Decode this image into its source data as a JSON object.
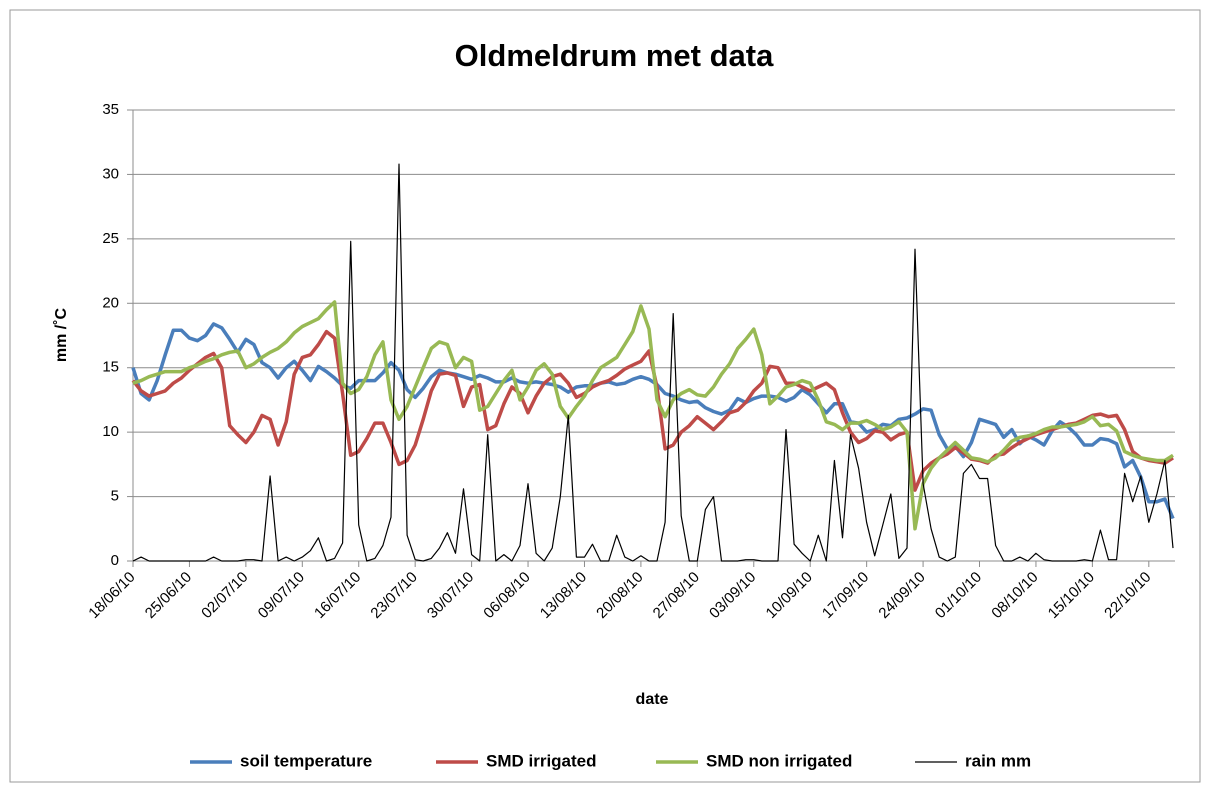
{
  "chart_data": {
    "type": "line",
    "title": "Oldmeldrum met data",
    "x_label": "date",
    "y_label": "mm /˚C",
    "categories": [
      "18/06/10",
      null,
      null,
      null,
      null,
      null,
      null,
      "25/06/10",
      null,
      null,
      null,
      null,
      null,
      null,
      "02/07/10",
      null,
      null,
      null,
      null,
      null,
      null,
      "09/07/10",
      null,
      null,
      null,
      null,
      null,
      null,
      "16/07/10",
      null,
      null,
      null,
      null,
      null,
      null,
      "23/07/10",
      null,
      null,
      null,
      null,
      null,
      null,
      "30/07/10",
      null,
      null,
      null,
      null,
      null,
      null,
      "06/08/10",
      null,
      null,
      null,
      null,
      null,
      null,
      "13/08/10",
      null,
      null,
      null,
      null,
      null,
      null,
      "20/08/10",
      null,
      null,
      null,
      null,
      null,
      null,
      "27/08/10",
      null,
      null,
      null,
      null,
      null,
      null,
      "03/09/10",
      null,
      null,
      null,
      null,
      null,
      null,
      "10/09/10",
      null,
      null,
      null,
      null,
      null,
      null,
      "17/09/10",
      null,
      null,
      null,
      null,
      null,
      null,
      "24/09/10",
      null,
      null,
      null,
      null,
      null,
      null,
      "01/10/10",
      null,
      null,
      null,
      null,
      null,
      null,
      "08/10/10",
      null,
      null,
      null,
      null,
      null,
      null,
      "15/10/10",
      null,
      null,
      null,
      null,
      null,
      null,
      "22/10/10",
      null,
      null,
      null
    ],
    "ylim": [
      0,
      35
    ],
    "yticks": [
      0,
      5,
      10,
      15,
      20,
      25,
      30,
      35
    ],
    "grid": true,
    "legend": "bottom",
    "series": [
      {
        "name": "soil temperature",
        "color": "#4a7ebb",
        "width": 3.5,
        "values": [
          15,
          13,
          12.5,
          14,
          16,
          17.9,
          17.9,
          17.3,
          17.1,
          17.5,
          18.4,
          18.1,
          17.2,
          16.2,
          17.2,
          16.8,
          15.4,
          15,
          14.2,
          15,
          15.5,
          14.8,
          14,
          15.1,
          14.7,
          14.2,
          13.6,
          13.4,
          14,
          14,
          14,
          14.6,
          15.4,
          14.8,
          13.3,
          12.7,
          13.4,
          14.3,
          14.8,
          14.6,
          14.5,
          14.3,
          14.1,
          14.4,
          14.2,
          13.9,
          13.9,
          14.2,
          13.9,
          13.8,
          13.9,
          13.8,
          13.7,
          13.5,
          13.1,
          13.5,
          13.6,
          13.6,
          13.8,
          13.9,
          13.7,
          13.8,
          14.1,
          14.3,
          14.1,
          13.7,
          13,
          12.8,
          12.5,
          12.3,
          12.4,
          11.9,
          11.6,
          11.4,
          11.7,
          12.6,
          12.3,
          12.6,
          12.8,
          12.8,
          12.7,
          12.4,
          12.7,
          13.3,
          12.9,
          12.2,
          11.5,
          12.2,
          12.2,
          10.8,
          10.7,
          10,
          10.2,
          10.6,
          10.5,
          11,
          11.1,
          11.4,
          11.8,
          11.7,
          9.8,
          8.7,
          8.9,
          8.1,
          9.2,
          11,
          10.8,
          10.6,
          9.6,
          10.2,
          9.1,
          9.7,
          9.4,
          9,
          10.1,
          10.8,
          10.4,
          9.8,
          9,
          9,
          9.5,
          9.4,
          9.1,
          7.3,
          7.8,
          6.5,
          4.6,
          4.6,
          4.8,
          3.3
        ]
      },
      {
        "name": "SMD irrigated",
        "color": "#be4b48",
        "width": 3.5,
        "values": [
          14,
          13.2,
          12.8,
          13,
          13.2,
          13.8,
          14.2,
          14.8,
          15.3,
          15.8,
          16.1,
          15,
          10.5,
          9.8,
          9.2,
          10,
          11.3,
          11,
          9,
          10.8,
          14.5,
          15.8,
          16,
          16.8,
          17.8,
          17.3,
          13,
          8.2,
          8.5,
          9.5,
          10.7,
          10.7,
          9.2,
          7.5,
          7.8,
          9,
          11,
          13.2,
          14.5,
          14.6,
          14.4,
          12,
          13.5,
          13.7,
          10.2,
          10.5,
          12.2,
          13.5,
          13,
          11.5,
          12.8,
          13.8,
          14.3,
          14.5,
          13.8,
          12.7,
          13,
          13.5,
          13.8,
          14,
          14.4,
          14.9,
          15.2,
          15.5,
          16.3,
          13.5,
          8.7,
          9,
          10,
          10.5,
          11.2,
          10.7,
          10.2,
          10.8,
          11.5,
          11.7,
          12.3,
          13.2,
          13.8,
          15.1,
          15,
          13.8,
          13.8,
          13.5,
          13.2,
          13.5,
          13.8,
          13.3,
          11.5,
          10,
          9.2,
          9.5,
          10.1,
          10,
          9.4,
          9.8,
          10,
          5.5,
          7,
          7.6,
          8,
          8.3,
          8.8,
          8.4,
          7.9,
          7.8,
          7.6,
          8.2,
          8.3,
          8.8,
          9.2,
          9.5,
          9.8,
          10,
          10.2,
          10.4,
          10.6,
          10.7,
          11,
          11.3,
          11.4,
          11.2,
          11.3,
          10.2,
          8.5,
          8,
          7.8,
          7.7,
          7.6,
          8
        ]
      },
      {
        "name": "SMD non irrigated",
        "color": "#98b954",
        "width": 3.5,
        "values": [
          13.8,
          14,
          14.3,
          14.5,
          14.7,
          14.7,
          14.7,
          15,
          15.2,
          15.5,
          15.7,
          16,
          16.2,
          16.3,
          15,
          15.3,
          15.8,
          16.2,
          16.5,
          17,
          17.7,
          18.2,
          18.5,
          18.8,
          19.5,
          20.1,
          13.8,
          13,
          13.3,
          14.3,
          16,
          17,
          12.5,
          11,
          12,
          13.5,
          15,
          16.5,
          17,
          16.8,
          15,
          15.8,
          15.5,
          11.7,
          12,
          13,
          14,
          14.8,
          12.5,
          13.5,
          14.8,
          15.3,
          14.5,
          12,
          11.1,
          12,
          12.8,
          14,
          15,
          15.4,
          15.8,
          16.8,
          17.8,
          19.8,
          18,
          12.5,
          11.2,
          12.5,
          13,
          13.3,
          12.9,
          12.8,
          13.5,
          14.5,
          15.3,
          16.5,
          17.2,
          18,
          16,
          12.2,
          12.8,
          13.5,
          13.7,
          14,
          13.8,
          12.5,
          10.8,
          10.6,
          10.2,
          10.7,
          10.7,
          10.9,
          10.6,
          10.2,
          10.4,
          10.8,
          10,
          2.5,
          6,
          7.2,
          8,
          8.6,
          9.2,
          8.6,
          8,
          7.9,
          7.7,
          8,
          8.6,
          9.3,
          9.6,
          9.7,
          9.9,
          10.2,
          10.4,
          10.4,
          10.5,
          10.6,
          10.8,
          11.2,
          10.5,
          10.6,
          10.1,
          8.5,
          8.2,
          8,
          7.9,
          7.8,
          7.8,
          8.2
        ]
      },
      {
        "name": "rain mm",
        "color": "#000000",
        "width": 1.2,
        "values": [
          0,
          0.3,
          0,
          0,
          0,
          0,
          0,
          0,
          0,
          0,
          0.3,
          0,
          0,
          0,
          0.1,
          0.1,
          0,
          6.6,
          0,
          0.3,
          0,
          0.3,
          0.8,
          1.8,
          0,
          0.2,
          1.4,
          24.8,
          2.8,
          0,
          0.2,
          1.2,
          3.4,
          30.8,
          2,
          0.1,
          0,
          0.2,
          1,
          2.2,
          0.6,
          5.6,
          0.5,
          0,
          9.8,
          0,
          0.5,
          0,
          1.2,
          6,
          0.6,
          0,
          1,
          5,
          11.3,
          0.3,
          0.3,
          1.3,
          0,
          0,
          2,
          0.3,
          0,
          0.4,
          0,
          0,
          3,
          19.2,
          3.5,
          0,
          0,
          4,
          5,
          0,
          0,
          0,
          0.1,
          0.1,
          0,
          0,
          0,
          10.2,
          1.3,
          0.6,
          0,
          2,
          0,
          7.8,
          1.8,
          9.8,
          7.2,
          3,
          0.4,
          2.8,
          5.2,
          0.2,
          1,
          24.2,
          6,
          2.5,
          0.3,
          0,
          0.3,
          6.8,
          7.5,
          6.4,
          6.4,
          1.2,
          0,
          0,
          0.3,
          0,
          0.6,
          0.1,
          0,
          0,
          0,
          0,
          0.1,
          0,
          2.4,
          0.1,
          0.1,
          6.8,
          4.6,
          6.6,
          3,
          5.2,
          7.8,
          1
        ]
      }
    ]
  }
}
